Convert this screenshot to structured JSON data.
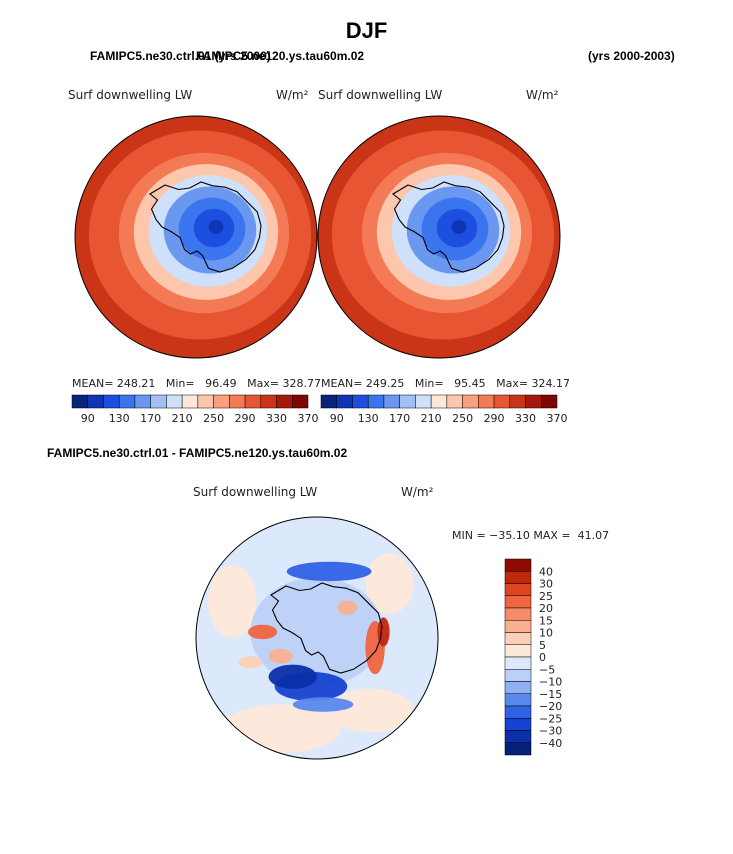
{
  "page": {
    "title": "DJF",
    "header_left": "FAMIPC5.ne30.ctrl.01 (yrs 2000)",
    "header_center": "FAMIPC5.ne120.ys.tau60m.02",
    "header_right": "(yrs 2000-2003)",
    "diff_header": "FAMIPC5.ne30.ctrl.01 - FAMIPC5.ne120.ys.tau60m.02"
  },
  "colors": {
    "base_levels": [
      "#08247a",
      "#0f35b5",
      "#1c4fe0",
      "#3a74ee",
      "#6a98f0",
      "#a3c0f5",
      "#cfe0fa",
      "#fde8d8",
      "#fcc7ac",
      "#f9a07e",
      "#f47a55",
      "#e75532",
      "#c93516",
      "#a5180a",
      "#7d0703"
    ],
    "diff_levels": [
      "#06207a",
      "#0b2fa8",
      "#1542d0",
      "#2f62e6",
      "#5a88ec",
      "#8fb0f2",
      "#bcd0f7",
      "#dce8fb",
      "#fde9da",
      "#fbd0b7",
      "#f9b090",
      "#f68a66",
      "#ef6541",
      "#df4322",
      "#c0280c",
      "#8f0a03"
    ]
  },
  "chart_data": [
    {
      "type": "heatmap",
      "projection": "south-polar-stereographic",
      "title": "Surf downwelling LW",
      "units": "W/m²",
      "stats_text": "MEAN= 248.21   Min=   96.49   Max= 328.77",
      "mean": 248.21,
      "min": 96.49,
      "max": 328.77,
      "levels": [
        90,
        110,
        130,
        150,
        170,
        190,
        210,
        230,
        250,
        270,
        290,
        310,
        330,
        350,
        370
      ],
      "colorbar_labels": [
        "90",
        "130",
        "170",
        "210",
        "250",
        "290",
        "330",
        "370"
      ],
      "colorbar_orientation": "horizontal",
      "field_bands": [
        {
          "lat": -90,
          "value": 100
        },
        {
          "lat": -85,
          "value": 115
        },
        {
          "lat": -80,
          "value": 135
        },
        {
          "lat": -75,
          "value": 165
        },
        {
          "lat": -70,
          "value": 200
        },
        {
          "lat": -65,
          "value": 240
        },
        {
          "lat": -60,
          "value": 270
        },
        {
          "lat": -55,
          "value": 290
        },
        {
          "lat": -50,
          "value": 305
        },
        {
          "lat": -45,
          "value": 320
        },
        {
          "lat": -40,
          "value": 328
        }
      ]
    },
    {
      "type": "heatmap",
      "projection": "south-polar-stereographic",
      "title": "Surf downwelling LW",
      "units": "W/m²",
      "stats_text": "MEAN= 249.25   Min=   95.45   Max= 324.17",
      "mean": 249.25,
      "min": 95.45,
      "max": 324.17,
      "levels": [
        90,
        110,
        130,
        150,
        170,
        190,
        210,
        230,
        250,
        270,
        290,
        310,
        330,
        350,
        370
      ],
      "colorbar_labels": [
        "90",
        "130",
        "170",
        "210",
        "250",
        "290",
        "330",
        "370"
      ],
      "colorbar_orientation": "horizontal",
      "field_bands": [
        {
          "lat": -90,
          "value": 98
        },
        {
          "lat": -85,
          "value": 112
        },
        {
          "lat": -80,
          "value": 132
        },
        {
          "lat": -75,
          "value": 163
        },
        {
          "lat": -70,
          "value": 198
        },
        {
          "lat": -65,
          "value": 238
        },
        {
          "lat": -60,
          "value": 272
        },
        {
          "lat": -55,
          "value": 292
        },
        {
          "lat": -50,
          "value": 306
        },
        {
          "lat": -45,
          "value": 318
        },
        {
          "lat": -40,
          "value": 324
        }
      ]
    },
    {
      "type": "heatmap",
      "projection": "south-polar-stereographic",
      "title": "Surf downwelling LW",
      "units": "W/m²",
      "stats_text": "MIN = −35.10 MAX =  41.07",
      "min": -35.1,
      "max": 41.07,
      "levels": [
        -40,
        -30,
        -25,
        -20,
        -15,
        -10,
        -5,
        0,
        5,
        10,
        15,
        20,
        25,
        30,
        40
      ],
      "colorbar_labels": [
        "40",
        "30",
        "25",
        "20",
        "15",
        "10",
        "5",
        "0",
        "−5",
        "−10",
        "−15",
        "−20",
        "−25",
        "−30",
        "−40"
      ],
      "colorbar_orientation": "vertical"
    }
  ]
}
